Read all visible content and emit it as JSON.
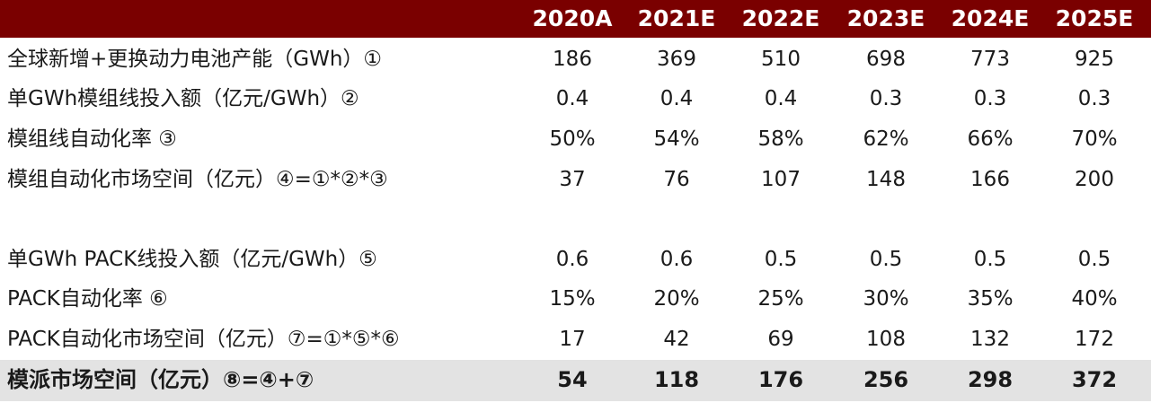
{
  "header": {
    "years": [
      "2020A",
      "2021E",
      "2022E",
      "2023E",
      "2024E",
      "2025E"
    ]
  },
  "rows": [
    {
      "label": "全球新增+更换动力电池产能（GWh）①",
      "values": [
        "186",
        "369",
        "510",
        "698",
        "773",
        "925"
      ]
    },
    {
      "label": "单GWh模组线投入额（亿元/GWh）②",
      "values": [
        "0.4",
        "0.4",
        "0.4",
        "0.3",
        "0.3",
        "0.3"
      ]
    },
    {
      "label": "模组线自动化率 ③",
      "values": [
        "50%",
        "54%",
        "58%",
        "62%",
        "66%",
        "70%"
      ]
    },
    {
      "label": "模组自动化市场空间（亿元）④=①*②*③",
      "values": [
        "37",
        "76",
        "107",
        "148",
        "166",
        "200"
      ]
    },
    {
      "label": "单GWh PACK线投入额（亿元/GWh）⑤",
      "values": [
        "0.6",
        "0.6",
        "0.5",
        "0.5",
        "0.5",
        "0.5"
      ]
    },
    {
      "label": "PACK自动化率 ⑥",
      "values": [
        "15%",
        "20%",
        "25%",
        "30%",
        "35%",
        "40%"
      ]
    },
    {
      "label": "PACK自动化市场空间（亿元）⑦=①*⑤*⑥",
      "values": [
        "17",
        "42",
        "69",
        "108",
        "132",
        "172"
      ]
    },
    {
      "label": "模派市场空间（亿元）⑧=④+⑦",
      "values": [
        "54",
        "118",
        "176",
        "256",
        "298",
        "372"
      ]
    }
  ],
  "colors": {
    "header_bg": "#7a0000",
    "header_text": "#ffffff",
    "total_row_bg": "#e3e3e3"
  }
}
